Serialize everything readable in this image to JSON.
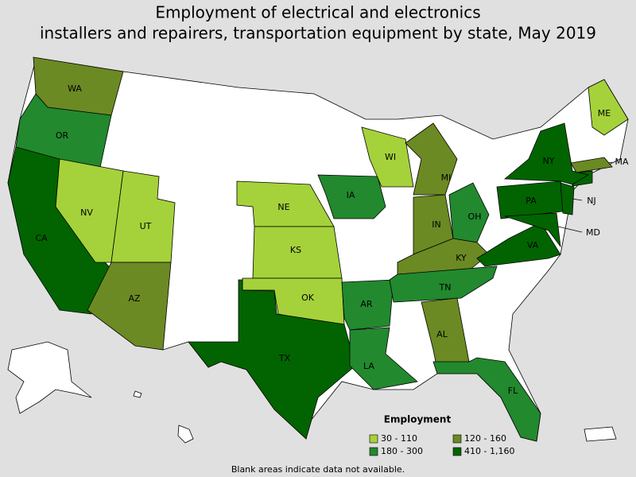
{
  "title": [
    "Employment of electrical and electronics",
    "installers and repairers, transportation equipment by state, May 2019"
  ],
  "legend": {
    "title": "Employment",
    "items": [
      {
        "label": "30 - 110",
        "color": "#a5d23a"
      },
      {
        "label": "120 - 160",
        "color": "#6b8a23"
      },
      {
        "label": "180 - 300",
        "color": "#22892e"
      },
      {
        "label": "410 - 1,160",
        "color": "#016400"
      }
    ]
  },
  "states": [
    {
      "label": "WA",
      "color": "#6b8a23"
    },
    {
      "label": "OR",
      "color": "#22892e"
    },
    {
      "label": "CA",
      "color": "#016400"
    },
    {
      "label": "NV",
      "color": "#a5d23a"
    },
    {
      "label": "UT",
      "color": "#a5d23a"
    },
    {
      "label": "AZ",
      "color": "#6b8a23"
    },
    {
      "label": "NE",
      "color": "#a5d23a"
    },
    {
      "label": "KS",
      "color": "#a5d23a"
    },
    {
      "label": "OK",
      "color": "#a5d23a"
    },
    {
      "label": "TX",
      "color": "#016400"
    },
    {
      "label": "IA",
      "color": "#22892e"
    },
    {
      "label": "AR",
      "color": "#22892e"
    },
    {
      "label": "LA",
      "color": "#22892e"
    },
    {
      "label": "WI",
      "color": "#a5d23a"
    },
    {
      "label": "MI",
      "color": "#6b8a23"
    },
    {
      "label": "IN",
      "color": "#6b8a23"
    },
    {
      "label": "OH",
      "color": "#22892e"
    },
    {
      "label": "KY",
      "color": "#6b8a23"
    },
    {
      "label": "TN",
      "color": "#22892e"
    },
    {
      "label": "AL",
      "color": "#6b8a23"
    },
    {
      "label": "FL",
      "color": "#22892e"
    },
    {
      "label": "NY",
      "color": "#016400"
    },
    {
      "label": "PA",
      "color": "#016400"
    },
    {
      "label": "VA",
      "color": "#016400"
    },
    {
      "label": "NJ",
      "color": "#016400"
    },
    {
      "label": "MD",
      "color": "#016400"
    },
    {
      "label": "ME",
      "color": "#a5d23a"
    },
    {
      "label": "MA",
      "color": "#6b8a23"
    }
  ],
  "footnote": "Blank areas indicate data not available."
}
